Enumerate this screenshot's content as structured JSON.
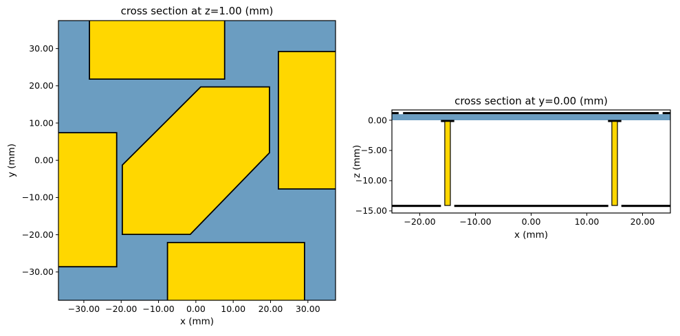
{
  "figure": {
    "background": "#ffffff"
  },
  "colors": {
    "substrate": "#6b9dc1",
    "conductor": "#ffd700",
    "edge": "#000000",
    "text": "#000000"
  },
  "chart_data": [
    {
      "id": "left",
      "type": "cross_section",
      "title": "cross section at z=1.00 (mm)",
      "xlabel": "x (mm)",
      "ylabel": "y (mm)",
      "xlim": [
        -36.8,
        37.4
      ],
      "ylim": [
        -37.6,
        37.5
      ],
      "xticks": [
        -30,
        -20,
        -10,
        0,
        10,
        20,
        30
      ],
      "yticks": [
        -30,
        -20,
        -10,
        0,
        10,
        20,
        30
      ],
      "tick_decimals": 2,
      "background_fill": "substrate",
      "shapes": [
        {
          "name": "top-conductor-rect",
          "kind": "polygon",
          "fill": "conductor",
          "stroke": "edge",
          "points": [
            [
              -28.5,
              38.5
            ],
            [
              7.7,
              38.5
            ],
            [
              7.7,
              21.8
            ],
            [
              -28.5,
              21.8
            ]
          ]
        },
        {
          "name": "right-conductor-rect",
          "kind": "polygon",
          "fill": "conductor",
          "stroke": "edge",
          "points": [
            [
              22.1,
              29.2
            ],
            [
              38.5,
              29.2
            ],
            [
              38.5,
              -7.7
            ],
            [
              22.1,
              -7.7
            ]
          ]
        },
        {
          "name": "left-conductor-rect",
          "kind": "polygon",
          "fill": "conductor",
          "stroke": "edge",
          "points": [
            [
              -38.5,
              7.4
            ],
            [
              -21.2,
              7.4
            ],
            [
              -21.2,
              -28.6
            ],
            [
              -38.5,
              -28.6
            ]
          ]
        },
        {
          "name": "bottom-conductor-rect",
          "kind": "polygon",
          "fill": "conductor",
          "stroke": "edge",
          "points": [
            [
              -7.6,
              -22.1
            ],
            [
              29.1,
              -22.1
            ],
            [
              29.1,
              -38.5
            ],
            [
              -7.6,
              -38.5
            ]
          ]
        },
        {
          "name": "center-conductor-hexagon",
          "kind": "polygon",
          "fill": "conductor",
          "stroke": "edge",
          "points": [
            [
              1.3,
              19.7
            ],
            [
              19.7,
              19.7
            ],
            [
              19.7,
              2.0
            ],
            [
              -1.5,
              -19.9
            ],
            [
              -19.7,
              -19.9
            ],
            [
              -19.7,
              -1.3
            ]
          ]
        }
      ]
    },
    {
      "id": "right",
      "type": "cross_section",
      "title": "cross section at y=0.00 (mm)",
      "xlabel": "x (mm)",
      "ylabel": "z (mm)",
      "xlim": [
        -25,
        25
      ],
      "ylim": [
        -15.35,
        1.7
      ],
      "xticks": [
        -20,
        -10,
        0,
        10,
        20
      ],
      "yticks": [
        0,
        -5,
        -10,
        -15
      ],
      "tick_decimals": 2,
      "background_fill": "#ffffff",
      "shapes": [
        {
          "name": "substrate-band",
          "kind": "rect",
          "fill": "substrate",
          "stroke": null,
          "x": [
            -25.5,
            25.5
          ],
          "y": [
            0.0,
            1.0
          ]
        },
        {
          "name": "top-conductor-left-stub",
          "kind": "rect",
          "fill": "edge",
          "stroke": null,
          "x": [
            -25.5,
            -23.8
          ],
          "y": [
            1.0,
            1.35
          ]
        },
        {
          "name": "top-conductor-main",
          "kind": "rect",
          "fill": "edge",
          "stroke": null,
          "x": [
            -23.0,
            22.9
          ],
          "y": [
            1.0,
            1.35
          ]
        },
        {
          "name": "top-conductor-right-stub",
          "kind": "rect",
          "fill": "edge",
          "stroke": null,
          "x": [
            23.6,
            25.5
          ],
          "y": [
            1.0,
            1.35
          ]
        },
        {
          "name": "left-via-pad",
          "kind": "rect",
          "fill": "edge",
          "stroke": null,
          "x": [
            -16.2,
            -13.8
          ],
          "y": [
            -0.3,
            0.05
          ]
        },
        {
          "name": "right-via-pad",
          "kind": "rect",
          "fill": "edge",
          "stroke": null,
          "x": [
            13.8,
            16.2
          ],
          "y": [
            -0.3,
            0.05
          ]
        },
        {
          "name": "left-via",
          "kind": "rect",
          "fill": "conductor",
          "stroke": "edge",
          "x": [
            -15.5,
            -14.5
          ],
          "y": [
            -14.1,
            -0.2
          ]
        },
        {
          "name": "right-via",
          "kind": "rect",
          "fill": "conductor",
          "stroke": "edge",
          "x": [
            14.5,
            15.5
          ],
          "y": [
            -14.1,
            -0.2
          ]
        },
        {
          "name": "ground-plane-left",
          "kind": "rect",
          "fill": "edge",
          "stroke": null,
          "x": [
            -25.5,
            -16.2
          ],
          "y": [
            -14.35,
            -14.0
          ]
        },
        {
          "name": "ground-plane-center",
          "kind": "rect",
          "fill": "edge",
          "stroke": null,
          "x": [
            -13.8,
            13.85
          ],
          "y": [
            -14.35,
            -14.0
          ]
        },
        {
          "name": "ground-plane-right",
          "kind": "rect",
          "fill": "edge",
          "stroke": null,
          "x": [
            16.2,
            25.5
          ],
          "y": [
            -14.35,
            -14.0
          ]
        }
      ]
    }
  ]
}
